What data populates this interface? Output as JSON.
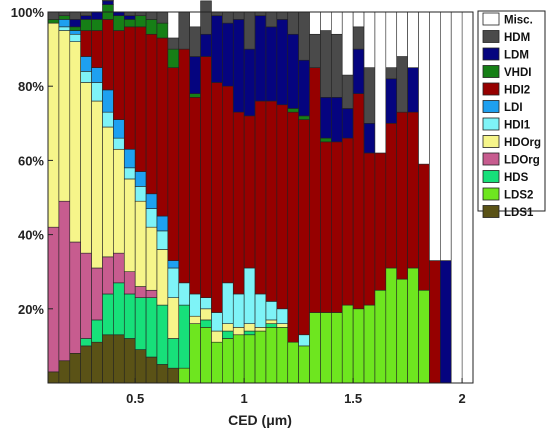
{
  "chart_data": {
    "type": "bar",
    "stacked": true,
    "xlabel": "CED (μm)",
    "ylabel": "",
    "ylim": [
      0,
      100
    ],
    "xlim": [
      0.1,
      2.05
    ],
    "xticks": [
      0.5,
      1,
      1.5,
      2
    ],
    "yticks": [
      20,
      40,
      60,
      80,
      100
    ],
    "yticklabels": [
      "20%",
      "40%",
      "60%",
      "80%",
      "100%"
    ],
    "bin_width": 0.05,
    "x": [
      0.125,
      0.175,
      0.225,
      0.275,
      0.325,
      0.375,
      0.425,
      0.475,
      0.525,
      0.575,
      0.625,
      0.675,
      0.725,
      0.775,
      0.825,
      0.875,
      0.925,
      0.975,
      1.025,
      1.075,
      1.125,
      1.175,
      1.225,
      1.275,
      1.325,
      1.375,
      1.425,
      1.475,
      1.525,
      1.575,
      1.625,
      1.675,
      1.725,
      1.775,
      1.825,
      1.875,
      1.925,
      1.975
    ],
    "legend_position": "right",
    "series": [
      {
        "name": "LDS1",
        "color": "#5a5216",
        "values": [
          3,
          6,
          8,
          10,
          11,
          13,
          13,
          12,
          9,
          7,
          5,
          4,
          0,
          0,
          0,
          0,
          0,
          0,
          0,
          0,
          0,
          0,
          0,
          0,
          0,
          0,
          0,
          0,
          0,
          0,
          0,
          0,
          0,
          0,
          0,
          0,
          0,
          0
        ]
      },
      {
        "name": "LDS2",
        "color": "#6ee61f",
        "values": [
          0,
          0,
          0,
          0,
          0,
          0,
          0,
          0,
          0,
          0,
          0,
          0,
          4,
          16,
          15,
          11,
          12,
          13,
          13,
          14,
          15,
          15,
          11,
          10,
          19,
          19,
          19,
          21,
          20,
          21,
          25,
          31,
          28,
          31,
          25,
          0,
          0,
          0
        ]
      },
      {
        "name": "HDS",
        "color": "#17e07a",
        "values": [
          0,
          0,
          0,
          2,
          6,
          11,
          14,
          12,
          14,
          16,
          16,
          8,
          17,
          0,
          2,
          0,
          2,
          0,
          1,
          0,
          1,
          0,
          0,
          0,
          0,
          0,
          0,
          0,
          0,
          0,
          0,
          0,
          0,
          0,
          0,
          0,
          0,
          0
        ]
      },
      {
        "name": "LDOrg",
        "color": "#c75c8f",
        "values": [
          39,
          43,
          30,
          23,
          14,
          10,
          8,
          6,
          3,
          2,
          0,
          0,
          0,
          0,
          0,
          0,
          0,
          0,
          0,
          0,
          0,
          0,
          0,
          0,
          0,
          0,
          0,
          0,
          0,
          0,
          0,
          0,
          0,
          0,
          0,
          0,
          0,
          0
        ]
      },
      {
        "name": "HDOrg",
        "color": "#f6f58a",
        "values": [
          55,
          46,
          54,
          46,
          45,
          35,
          28,
          25,
          23,
          17,
          15,
          11,
          0,
          2,
          3,
          3,
          2,
          2,
          2,
          1,
          1,
          1,
          0,
          0,
          0,
          0,
          0,
          0,
          0,
          0,
          0,
          0,
          0,
          0,
          0,
          0,
          0,
          0
        ]
      },
      {
        "name": "HDI1",
        "color": "#7ef3f7",
        "values": [
          0,
          1,
          2,
          3,
          5,
          4,
          3,
          3,
          4,
          5,
          5,
          8,
          6,
          6,
          3,
          5,
          11,
          9,
          15,
          9,
          5,
          4,
          0,
          3,
          0,
          0,
          0,
          0,
          0,
          0,
          0,
          0,
          0,
          0,
          0,
          0,
          0,
          0
        ]
      },
      {
        "name": "LDI",
        "color": "#1ea0f0",
        "values": [
          0,
          2,
          1,
          4,
          4,
          6,
          5,
          5,
          4,
          4,
          4,
          2,
          0,
          0,
          0,
          0,
          0,
          0,
          0,
          0,
          0,
          0,
          0,
          0,
          0,
          0,
          0,
          0,
          0,
          0,
          0,
          0,
          0,
          0,
          0,
          0,
          0,
          0
        ]
      },
      {
        "name": "HDI2",
        "color": "#960000",
        "values": [
          0,
          0,
          0,
          7,
          10,
          19,
          24,
          33,
          39,
          43,
          48,
          52,
          63,
          53,
          65,
          62,
          53,
          49,
          41,
          52,
          54,
          55,
          62,
          58,
          66,
          46,
          46,
          45,
          58,
          41,
          37,
          39,
          45,
          42,
          34,
          33,
          0,
          0
        ]
      },
      {
        "name": "VHDI",
        "color": "#167f16",
        "values": [
          1,
          1,
          1,
          3,
          3,
          4,
          4,
          2,
          3,
          4,
          4,
          5,
          0,
          1,
          0,
          0,
          0,
          0,
          0,
          0,
          0,
          0,
          1,
          1,
          0,
          1,
          0,
          0,
          0,
          0,
          0,
          0,
          0,
          0,
          0,
          0,
          0,
          0
        ]
      },
      {
        "name": "LDM",
        "color": "#05047f",
        "values": [
          0,
          0,
          2,
          1,
          2,
          1,
          1,
          1,
          0,
          0,
          0,
          0,
          0,
          10,
          6,
          18,
          17,
          25,
          18,
          23,
          20,
          23,
          20,
          15,
          0,
          11,
          12,
          8,
          12,
          8,
          0,
          12,
          0,
          12,
          0,
          0,
          33,
          0
        ]
      },
      {
        "name": "HDM",
        "color": "#4a4a4a",
        "values": [
          2,
          1,
          2,
          1,
          0,
          2,
          0,
          1,
          1,
          2,
          3,
          3,
          10,
          8,
          9,
          1,
          3,
          2,
          10,
          1,
          4,
          2,
          6,
          13,
          9,
          18,
          17,
          9,
          6,
          15,
          0,
          3,
          15,
          0,
          0,
          0,
          0,
          0
        ]
      },
      {
        "name": "Misc.",
        "color": "#ffffff",
        "values": [
          0,
          0,
          0,
          0,
          0,
          0,
          0,
          0,
          0,
          0,
          0,
          0,
          0,
          0,
          0,
          0,
          0,
          0,
          0,
          0,
          0,
          0,
          0,
          0,
          6,
          5,
          6,
          17,
          4,
          15,
          38,
          15,
          12,
          15,
          41,
          67,
          67,
          100
        ]
      }
    ]
  }
}
